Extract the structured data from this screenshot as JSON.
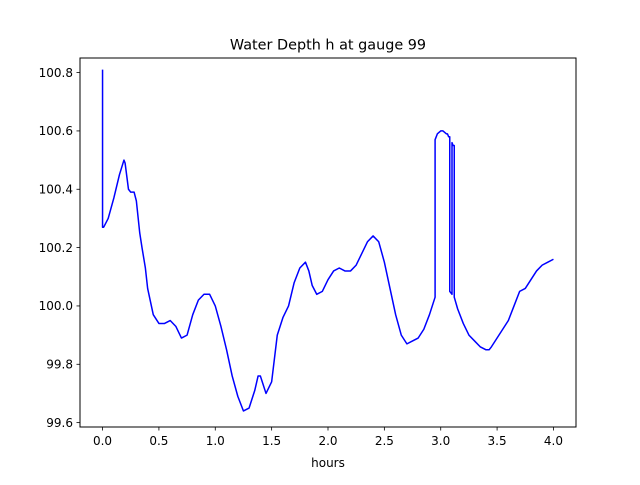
{
  "chart_data": {
    "type": "line",
    "title": "Water Depth h at gauge 99",
    "xlabel": "hours",
    "ylabel": "",
    "xlim": [
      -0.2,
      4.2
    ],
    "ylim": [
      99.585,
      100.85
    ],
    "xticks": [
      0.0,
      0.5,
      1.0,
      1.5,
      2.0,
      2.5,
      3.0,
      3.5,
      4.0
    ],
    "xtick_labels": [
      "0.0",
      "0.5",
      "1.0",
      "1.5",
      "2.0",
      "2.5",
      "3.0",
      "3.5",
      "4.0"
    ],
    "yticks": [
      99.6,
      99.8,
      100.0,
      100.2,
      100.4,
      100.6,
      100.8
    ],
    "ytick_labels": [
      "99.6",
      "99.8",
      "100.0",
      "100.2",
      "100.4",
      "100.6",
      "100.8"
    ],
    "grid": false,
    "legend": "none",
    "series": [
      {
        "color": "#0000ff",
        "x": [
          0.0,
          0.0,
          0.01,
          0.05,
          0.1,
          0.15,
          0.19,
          0.2,
          0.23,
          0.25,
          0.28,
          0.3,
          0.33,
          0.35,
          0.38,
          0.4,
          0.45,
          0.5,
          0.55,
          0.6,
          0.65,
          0.7,
          0.75,
          0.8,
          0.85,
          0.9,
          0.95,
          1.0,
          1.05,
          1.1,
          1.15,
          1.2,
          1.25,
          1.3,
          1.35,
          1.38,
          1.4,
          1.45,
          1.5,
          1.55,
          1.6,
          1.65,
          1.7,
          1.75,
          1.8,
          1.83,
          1.86,
          1.9,
          1.95,
          2.0,
          2.05,
          2.1,
          2.15,
          2.2,
          2.25,
          2.3,
          2.35,
          2.4,
          2.45,
          2.5,
          2.55,
          2.6,
          2.65,
          2.7,
          2.75,
          2.8,
          2.85,
          2.9,
          2.95,
          2.95,
          2.97,
          3.0,
          3.02,
          3.05,
          3.06,
          3.07,
          3.08,
          3.08,
          3.1,
          3.1,
          3.11,
          3.12,
          3.12,
          3.15,
          3.2,
          3.25,
          3.3,
          3.35,
          3.4,
          3.43,
          3.45,
          3.5,
          3.55,
          3.6,
          3.65,
          3.7,
          3.75,
          3.8,
          3.85,
          3.9,
          3.95,
          4.0
        ],
        "y": [
          100.81,
          100.27,
          100.27,
          100.3,
          100.37,
          100.45,
          100.5,
          100.49,
          100.4,
          100.39,
          100.39,
          100.36,
          100.25,
          100.2,
          100.13,
          100.06,
          99.97,
          99.94,
          99.94,
          99.95,
          99.93,
          99.89,
          99.9,
          99.97,
          100.02,
          100.04,
          100.04,
          100.0,
          99.93,
          99.85,
          99.76,
          99.69,
          99.64,
          99.65,
          99.71,
          99.76,
          99.76,
          99.7,
          99.74,
          99.9,
          99.96,
          100.0,
          100.08,
          100.13,
          100.15,
          100.12,
          100.07,
          100.04,
          100.05,
          100.09,
          100.12,
          100.13,
          100.12,
          100.12,
          100.14,
          100.18,
          100.22,
          100.24,
          100.22,
          100.15,
          100.06,
          99.97,
          99.9,
          99.87,
          99.88,
          99.89,
          99.92,
          99.97,
          100.03,
          100.57,
          100.59,
          100.6,
          100.6,
          100.59,
          100.59,
          100.58,
          100.58,
          100.05,
          100.04,
          100.56,
          100.55,
          100.55,
          100.03,
          99.99,
          99.94,
          99.9,
          99.88,
          99.86,
          99.85,
          99.85,
          99.86,
          99.89,
          99.92,
          99.95,
          100.0,
          100.05,
          100.06,
          100.09,
          100.12,
          100.14,
          100.15,
          100.16
        ]
      }
    ]
  }
}
